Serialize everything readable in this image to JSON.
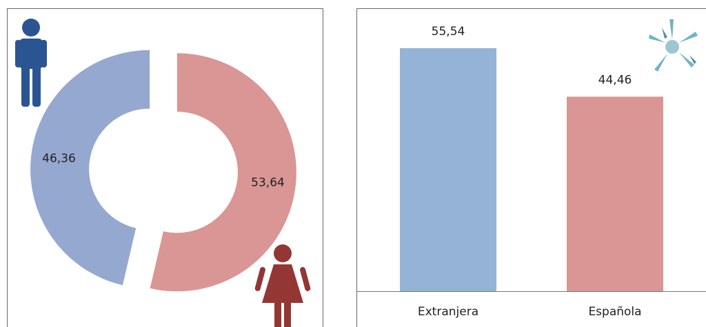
{
  "chart_data": [
    {
      "type": "donut",
      "values": [
        46.36,
        53.64
      ],
      "value_labels": [
        "46,36",
        "53,64"
      ],
      "colors": [
        "#95a8d0",
        "#d99694"
      ]
    },
    {
      "type": "bar",
      "categories": [
        "Extranjera",
        "Española"
      ],
      "values": [
        55.54,
        44.46
      ],
      "value_labels": [
        "55,54",
        "44,46"
      ],
      "colors": [
        "#95b3d7",
        "#d99694"
      ]
    }
  ]
}
